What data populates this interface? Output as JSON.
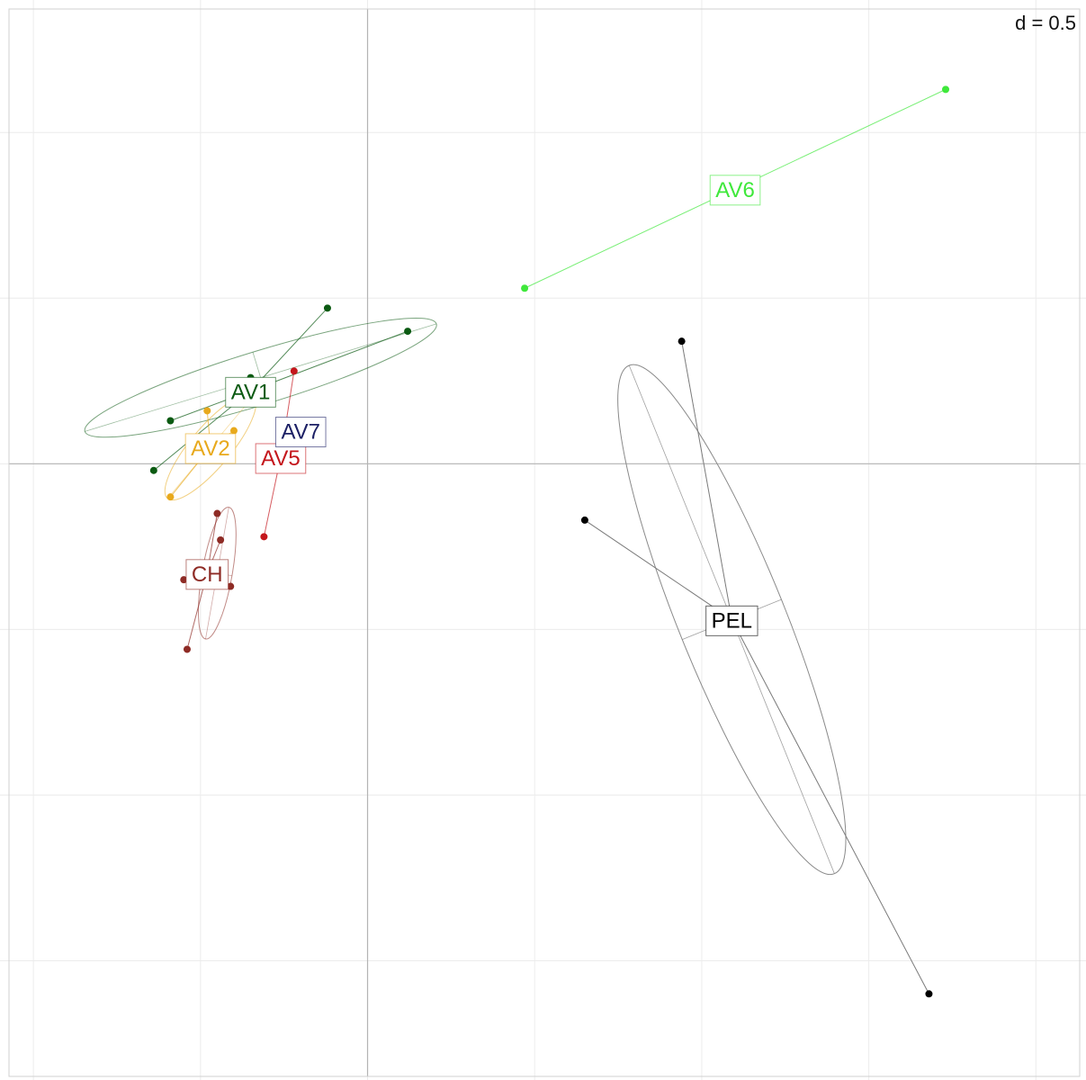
{
  "chart_data": {
    "type": "scatter",
    "scale_label": "d = 0.5",
    "xlim": [
      -1.1,
      2.15
    ],
    "ylim": [
      -1.86,
      1.4
    ],
    "grid_step": 0.5,
    "grid": true,
    "groups": [
      {
        "name": "AV1",
        "color": "#0b5a12",
        "centroid": [
          -0.35,
          0.22
        ],
        "points": [
          [
            -0.12,
            0.47
          ],
          [
            0.12,
            0.4
          ],
          [
            -0.59,
            0.13
          ],
          [
            -0.64,
            -0.02
          ],
          [
            -0.35,
            0.26
          ]
        ],
        "ellipse": {
          "cx": -0.32,
          "cy": 0.26,
          "rx": 0.55,
          "ry": 0.08,
          "angle_deg": 17
        }
      },
      {
        "name": "AV2",
        "color": "#e8a91c",
        "centroid": [
          -0.47,
          0.05
        ],
        "points": [
          [
            -0.48,
            0.16
          ],
          [
            -0.59,
            -0.1
          ],
          [
            -0.4,
            0.1
          ]
        ],
        "ellipse": {
          "cx": -0.47,
          "cy": 0.05,
          "rx": 0.2,
          "ry": 0.06,
          "angle_deg": 50
        }
      },
      {
        "name": "AV5",
        "color": "#c4161c",
        "centroid": [
          -0.26,
          0.02
        ],
        "points": [
          [
            -0.22,
            0.28
          ],
          [
            -0.31,
            -0.22
          ]
        ],
        "ellipse": null
      },
      {
        "name": "AV7",
        "color": "#1c2065",
        "centroid": [
          -0.2,
          0.1
        ],
        "points": [],
        "ellipse": null
      },
      {
        "name": "AV6",
        "color": "#3fe83b",
        "centroid": [
          1.1,
          0.83
        ],
        "points": [
          [
            0.47,
            0.53
          ],
          [
            1.73,
            1.13
          ]
        ],
        "ellipse": null
      },
      {
        "name": "CH",
        "color": "#8e2b25",
        "centroid": [
          -0.48,
          -0.33
        ],
        "points": [
          [
            -0.45,
            -0.15
          ],
          [
            -0.44,
            -0.23
          ],
          [
            -0.55,
            -0.35
          ],
          [
            -0.41,
            -0.37
          ],
          [
            -0.54,
            -0.56
          ]
        ],
        "ellipse": {
          "cx": -0.45,
          "cy": -0.33,
          "rx": 0.2,
          "ry": 0.045,
          "angle_deg": 80
        }
      },
      {
        "name": "PEL",
        "color": "#000000",
        "centroid": [
          1.09,
          -0.47
        ],
        "points": [
          [
            0.94,
            0.37
          ],
          [
            0.65,
            -0.17
          ],
          [
            1.68,
            -1.6
          ]
        ],
        "ellipse": {
          "cx": 1.09,
          "cy": -0.47,
          "rx": 0.82,
          "ry": 0.16,
          "angle_deg": -68
        }
      }
    ]
  }
}
